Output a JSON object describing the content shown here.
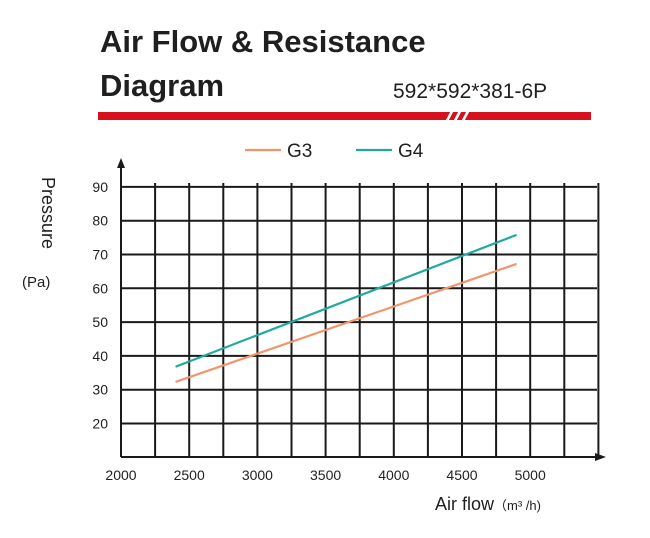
{
  "header": {
    "title_line1": "Air Flow & Resistance",
    "title_line2": "Diagram",
    "model": "592*592*381-6P",
    "accent_color": "#d7101d"
  },
  "chart_data": {
    "type": "line",
    "xlabel": "Air flow",
    "xunit": "（m³ /h)",
    "ylabel": "Pressure",
    "yunit": "(Pa)",
    "xlim": [
      2000,
      5500
    ],
    "ylim": [
      10,
      90
    ],
    "x_ticks": [
      2000,
      2500,
      3000,
      3500,
      4000,
      4500,
      5000
    ],
    "y_ticks": [
      20,
      30,
      40,
      50,
      60,
      70,
      80,
      90
    ],
    "grid": true,
    "legend_position": "top",
    "series": [
      {
        "name": "G3",
        "color": "#f0956c",
        "x": [
          2400,
          4900
        ],
        "y": [
          32.3,
          67.2
        ]
      },
      {
        "name": "G4",
        "color": "#21a99b",
        "x": [
          2400,
          4900
        ],
        "y": [
          36.8,
          75.8
        ]
      }
    ]
  }
}
